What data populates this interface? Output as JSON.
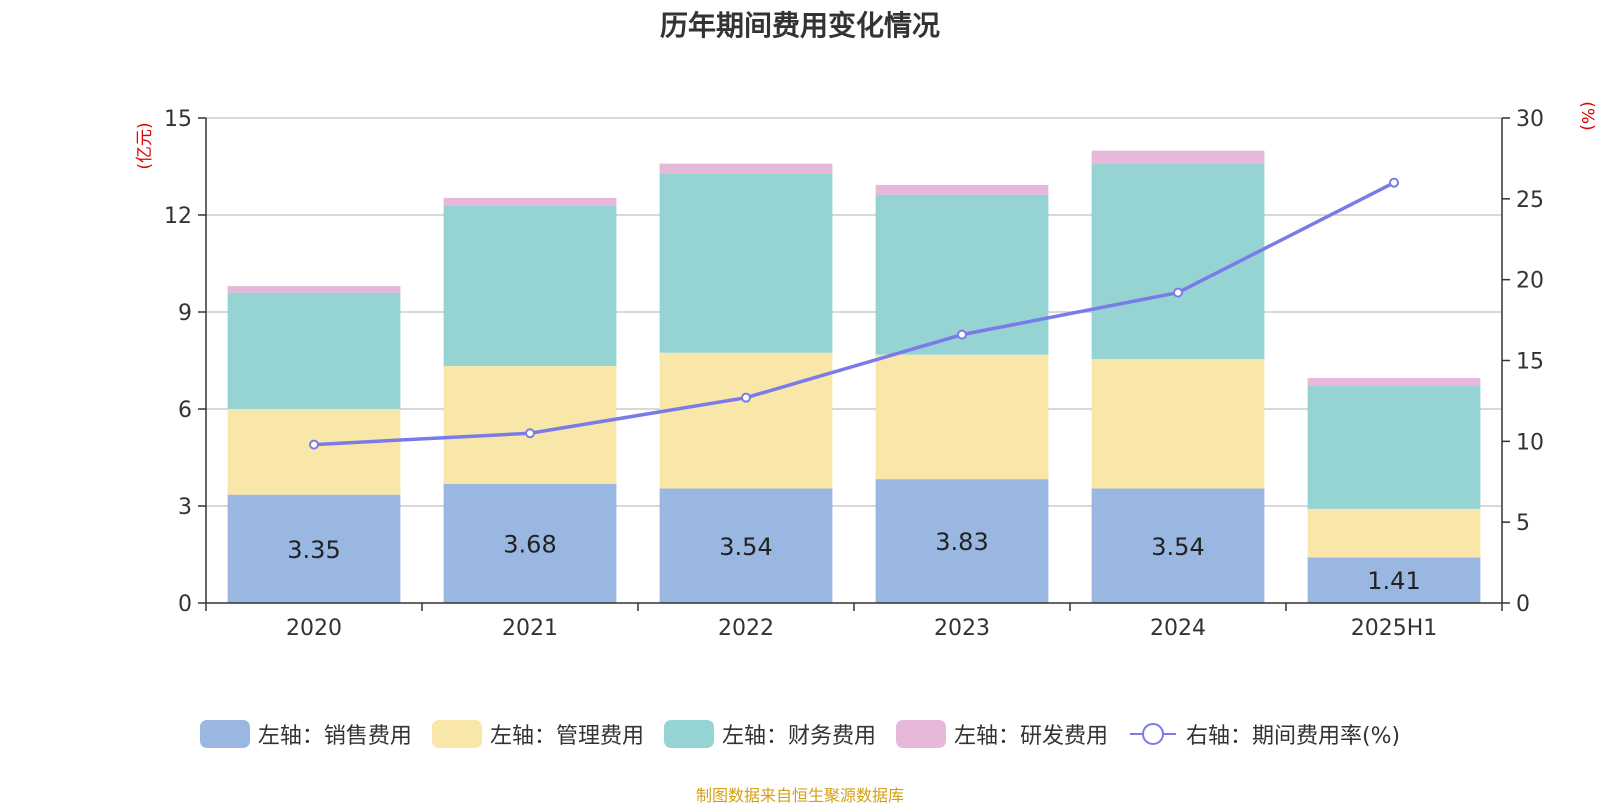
{
  "chart_data": {
    "type": "bar",
    "title": "历年期间费用变化情况",
    "categories": [
      "2020",
      "2021",
      "2022",
      "2023",
      "2024",
      "2025H1"
    ],
    "stacked": true,
    "left_axis": {
      "unit": "(亿元)",
      "ylim": [
        0,
        15
      ],
      "ticks": [
        "0",
        "3",
        "6",
        "9",
        "12",
        "15"
      ]
    },
    "right_axis": {
      "unit": "(%)",
      "ylim": [
        0,
        30
      ],
      "ticks": [
        "0",
        "5",
        "10",
        "15",
        "20",
        "25",
        "30"
      ]
    },
    "grid": true,
    "legend_position": "bottom-center",
    "series": [
      {
        "name": "左轴：销售费用",
        "type": "bar",
        "axis": "left",
        "color": "#9ab7e2",
        "values": [
          3.35,
          3.68,
          3.54,
          3.83,
          3.54,
          1.41
        ],
        "labels": [
          "3.35",
          "3.68",
          "3.54",
          "3.83",
          "3.54",
          "1.41"
        ]
      },
      {
        "name": "左轴：管理费用",
        "type": "bar",
        "axis": "left",
        "color": "#f8e7a8",
        "values": [
          2.65,
          3.65,
          4.2,
          3.85,
          4.0,
          1.5
        ]
      },
      {
        "name": "左轴：财务费用",
        "type": "bar",
        "axis": "left",
        "color": "#96d4d4",
        "values": [
          3.6,
          4.95,
          5.55,
          4.95,
          6.05,
          3.8
        ]
      },
      {
        "name": "左轴：研发费用",
        "type": "bar",
        "axis": "left",
        "color": "#e8b8db",
        "values": [
          0.2,
          0.25,
          0.3,
          0.3,
          0.4,
          0.25
        ]
      },
      {
        "name": "右轴：期间费用率(%)",
        "type": "line",
        "axis": "right",
        "color": "#7b7be8",
        "values": [
          9.8,
          10.5,
          12.7,
          16.6,
          19.2,
          26.0
        ]
      }
    ]
  },
  "source_text": "制图数据来自恒生聚源数据库"
}
